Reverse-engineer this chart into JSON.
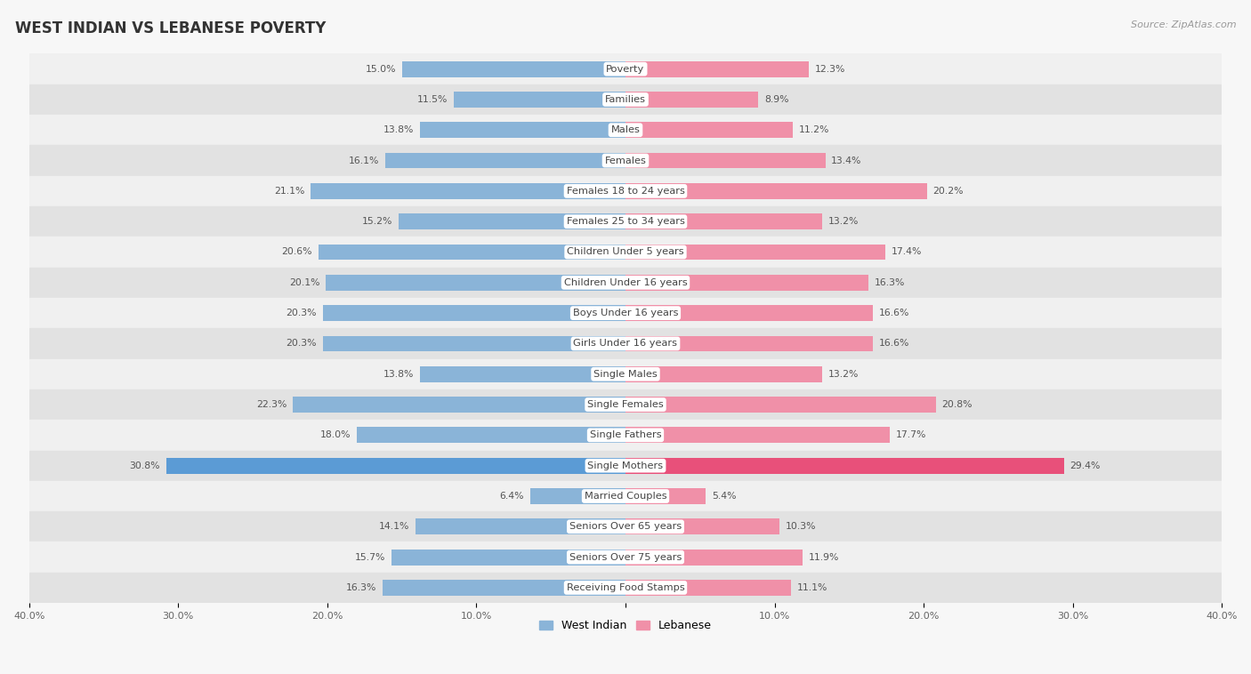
{
  "title": "WEST INDIAN VS LEBANESE POVERTY",
  "source": "Source: ZipAtlas.com",
  "categories": [
    "Poverty",
    "Families",
    "Males",
    "Females",
    "Females 18 to 24 years",
    "Females 25 to 34 years",
    "Children Under 5 years",
    "Children Under 16 years",
    "Boys Under 16 years",
    "Girls Under 16 years",
    "Single Males",
    "Single Females",
    "Single Fathers",
    "Single Mothers",
    "Married Couples",
    "Seniors Over 65 years",
    "Seniors Over 75 years",
    "Receiving Food Stamps"
  ],
  "west_indian": [
    15.0,
    11.5,
    13.8,
    16.1,
    21.1,
    15.2,
    20.6,
    20.1,
    20.3,
    20.3,
    13.8,
    22.3,
    18.0,
    30.8,
    6.4,
    14.1,
    15.7,
    16.3
  ],
  "lebanese": [
    12.3,
    8.9,
    11.2,
    13.4,
    20.2,
    13.2,
    17.4,
    16.3,
    16.6,
    16.6,
    13.2,
    20.8,
    17.7,
    29.4,
    5.4,
    10.3,
    11.9,
    11.1
  ],
  "west_indian_color": "#8ab4d8",
  "lebanese_color": "#f090a8",
  "single_mothers_wi_color": "#5b9bd5",
  "single_mothers_lb_color": "#e8507a",
  "background_color": "#f7f7f7",
  "row_bg_light": "#f0f0f0",
  "row_bg_dark": "#e2e2e2",
  "axis_limit": 40.0,
  "legend_labels": [
    "West Indian",
    "Lebanese"
  ],
  "bar_height": 0.52,
  "title_fontsize": 12,
  "label_fontsize": 8.2,
  "value_fontsize": 7.8,
  "source_fontsize": 8
}
